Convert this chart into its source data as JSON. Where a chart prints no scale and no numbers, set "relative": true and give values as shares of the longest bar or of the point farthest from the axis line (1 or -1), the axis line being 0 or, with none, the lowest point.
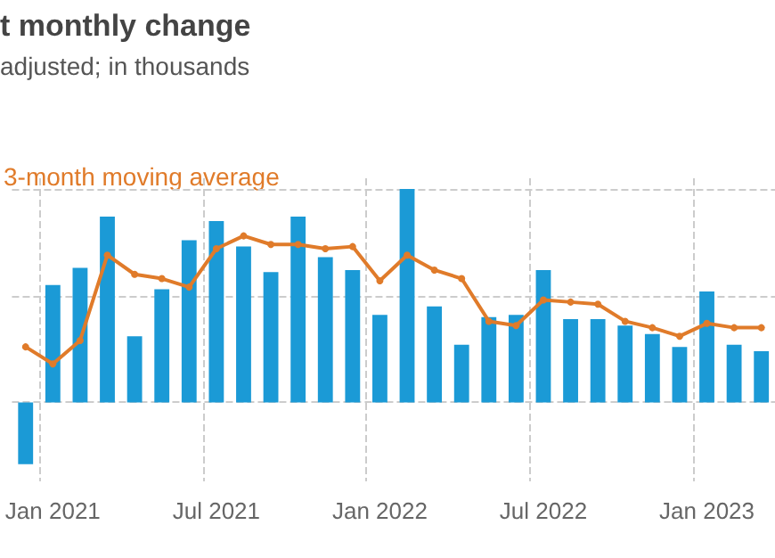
{
  "chart_data": {
    "type": "bar",
    "title": "t monthly change",
    "subtitle": "adjusted; in thousands",
    "relative": true,
    "grid": true,
    "tick_labels": "x",
    "categories": [
      null,
      "Jan 2021",
      null,
      null,
      null,
      null,
      null,
      "Jul 2021",
      null,
      null,
      null,
      null,
      null,
      "Jan 2022",
      null,
      null,
      null,
      null,
      null,
      "Jul 2022",
      null,
      null,
      null,
      null,
      null,
      "Jan 2023",
      null,
      null
    ],
    "series": [
      {
        "color": "#1b9ad6",
        "values": [
          -0.29,
          0.55,
          0.63,
          0.87,
          0.31,
          0.53,
          0.76,
          0.85,
          0.73,
          0.61,
          0.87,
          0.68,
          0.62,
          0.41,
          1,
          0.45,
          0.27,
          0.4,
          0.41,
          0.62,
          0.39,
          0.39,
          0.36,
          0.32,
          0.26,
          0.52,
          0.27,
          0.24
        ]
      },
      {
        "type": "line",
        "name": "3-month moving average",
        "color": "#e07b2a",
        "marker": "circle",
        "values": [
          0.26,
          0.18,
          0.29,
          0.69,
          0.6,
          0.58,
          0.54,
          0.72,
          0.78,
          0.74,
          0.74,
          0.72,
          0.73,
          0.57,
          0.69,
          0.62,
          0.58,
          0.38,
          0.36,
          0.48,
          0.47,
          0.46,
          0.38,
          0.35,
          0.31,
          0.37,
          0.35,
          0.35
        ]
      }
    ]
  }
}
